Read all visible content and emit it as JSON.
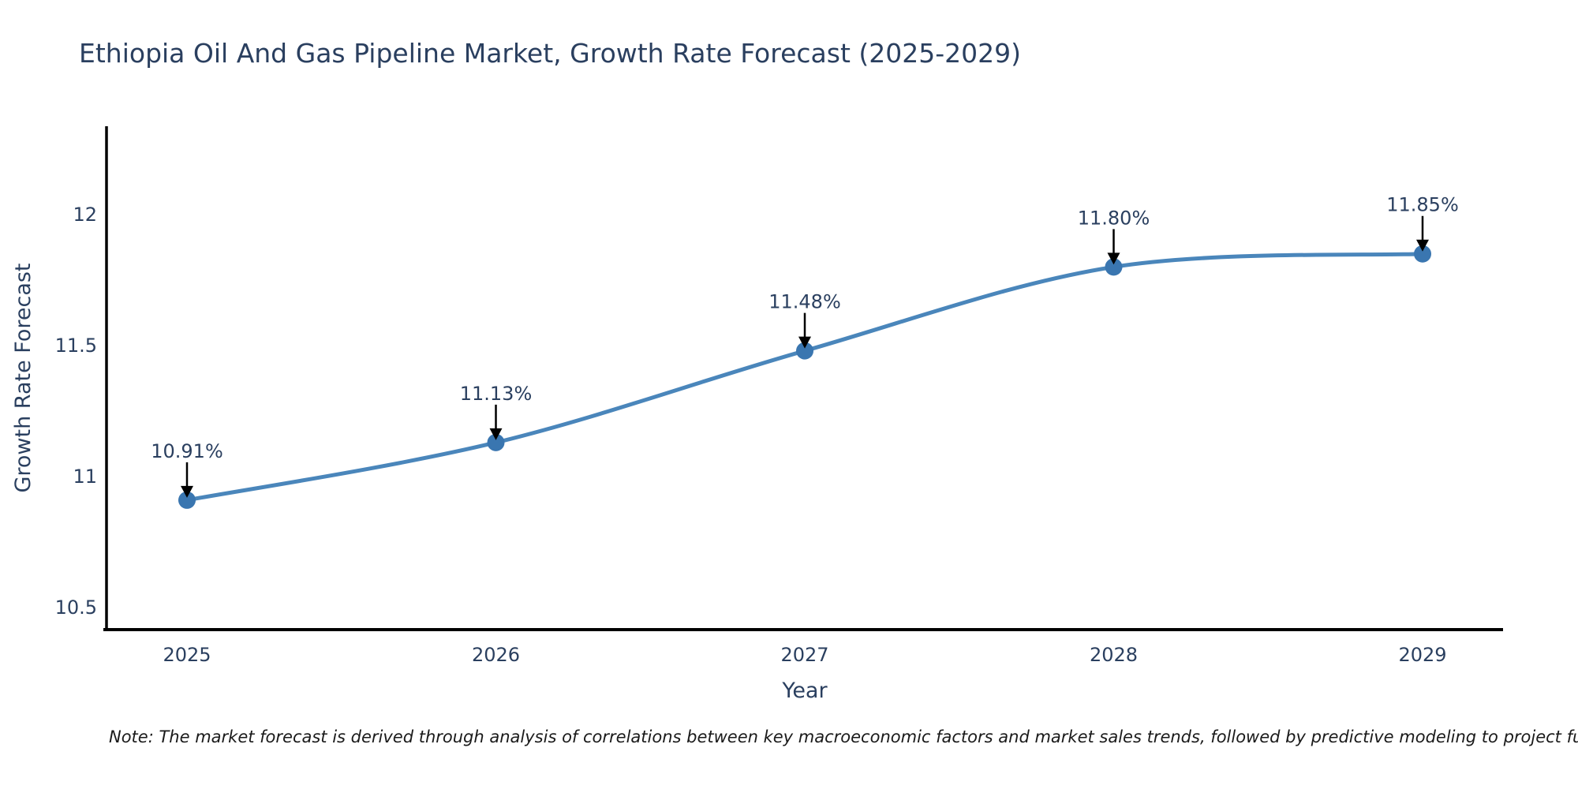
{
  "title": "Ethiopia Oil And Gas Pipeline Market, Growth Rate Forecast (2025-2029)",
  "note": "Note: The market forecast is derived through analysis of correlations between key macroeconomic factors and market sales trends, followed by predictive modeling to project future sales",
  "colors": {
    "title_text": "#2a3f5f",
    "tick_text": "#2a3f5f",
    "line": "#4a86bb",
    "marker": "#3a76b0",
    "axis": "#000000",
    "arrow": "#000000",
    "background": "#ffffff"
  },
  "chart_data": {
    "type": "line",
    "title": "Ethiopia Oil And Gas Pipeline Market, Growth Rate Forecast (2025-2029)",
    "xlabel": "Year",
    "ylabel": "Growth Rate Forecast",
    "categories": [
      "2025",
      "2026",
      "2027",
      "2028",
      "2029"
    ],
    "values": [
      10.91,
      11.13,
      11.48,
      11.8,
      11.85
    ],
    "point_labels": [
      "10.91%",
      "11.13%",
      "11.48%",
      "11.80%",
      "11.85%"
    ],
    "yticks": [
      10.5,
      11,
      11.5,
      12
    ],
    "ytick_labels": [
      "10.5",
      "11",
      "11.5",
      "12"
    ],
    "ylim": [
      10.416,
      12.337
    ],
    "line_shape": "spline",
    "markers": true,
    "grid": false,
    "legend": "none",
    "annotations_have_arrows": true
  }
}
